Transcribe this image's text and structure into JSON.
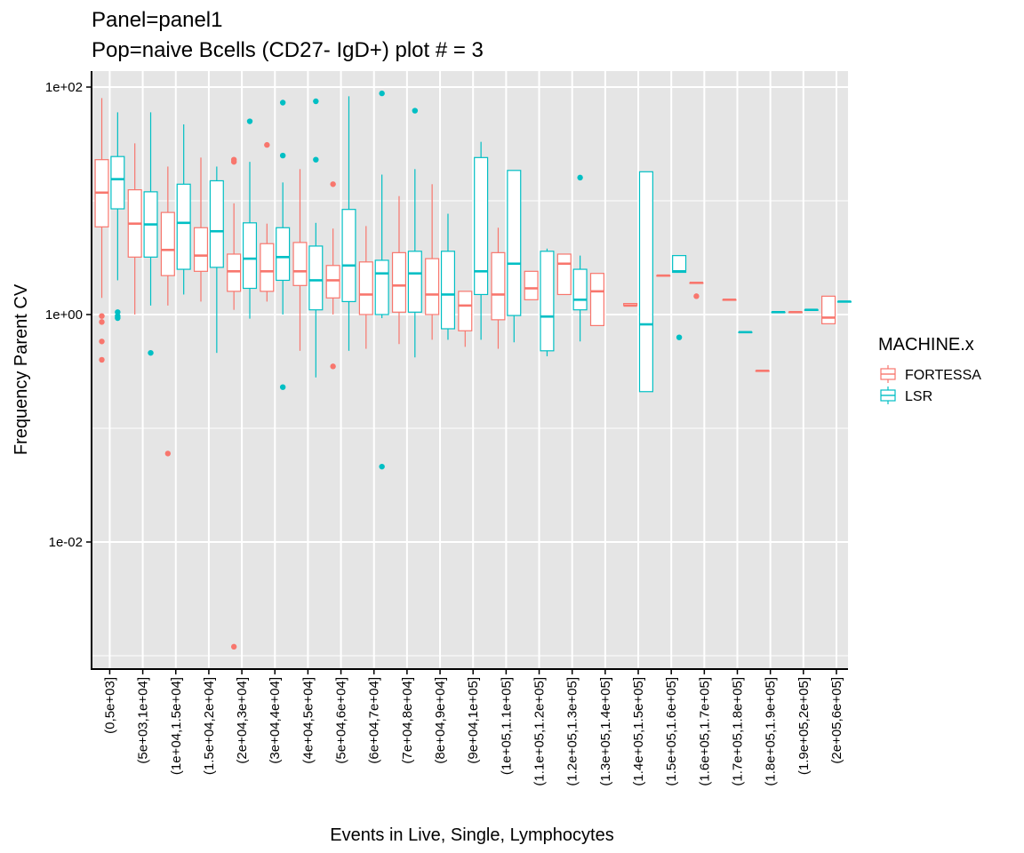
{
  "chart_data": {
    "type": "boxplot",
    "title": "Panel=panel1",
    "subtitle": "Pop=naive Bcells (CD27- IgD+) plot # = 3",
    "xlabel": "Events in Live, Single, Lymphocytes",
    "ylabel": "Frequency Parent CV",
    "y_scale": "log10",
    "ylim": [
      0.0008,
      150
    ],
    "y_ticks": [
      {
        "value": 0.01,
        "label": "1e-02"
      },
      {
        "value": 1,
        "label": "1e+00"
      },
      {
        "value": 100,
        "label": "1e+02"
      }
    ],
    "grid": true,
    "legend": {
      "title": "MACHINE.x",
      "position": "right",
      "entries": [
        "FORTESSA",
        "LSR"
      ]
    },
    "colors": {
      "FORTESSA": "#F8766D",
      "LSR": "#00BFC4",
      "panel_bg": "#E5E5E5",
      "grid": "#FFFFFF"
    },
    "categories": [
      "(0,5e+03]",
      "(5e+03,1e+04]",
      "(1e+04,1.5e+04]",
      "(1.5e+04,2e+04]",
      "(2e+04,3e+04]",
      "(3e+04,4e+04]",
      "(4e+04,5e+04]",
      "(5e+04,6e+04]",
      "(6e+04,7e+04]",
      "(7e+04,8e+04]",
      "(8e+04,9e+04]",
      "(9e+04,1e+05]",
      "(1e+05,1.1e+05]",
      "(1.1e+05,1.2e+05]",
      "(1.2e+05,1.3e+05]",
      "(1.3e+05,1.4e+05]",
      "(1.4e+05,1.5e+05]",
      "(1.5e+05,1.6e+05]",
      "(1.6e+05,1.7e+05]",
      "(1.7e+05,1.8e+05]",
      "(1.8e+05,1.9e+05]",
      "(1.9e+05,2e+05]",
      "(2e+05,6e+05]"
    ],
    "series": [
      {
        "name": "FORTESSA",
        "boxes": [
          {
            "category": 0,
            "min": 1.4,
            "q1": 5.9,
            "median": 11.8,
            "q3": 23,
            "max": 80,
            "outliers": [
              0.97,
              0.86,
              0.58,
              0.4
            ]
          },
          {
            "category": 1,
            "min": 1,
            "q1": 3.2,
            "median": 6.3,
            "q3": 12.5,
            "max": 32,
            "outliers": []
          },
          {
            "category": 2,
            "min": 1.2,
            "q1": 2.2,
            "median": 3.7,
            "q3": 7.9,
            "max": 20,
            "outliers": [
              0.06
            ]
          },
          {
            "category": 3,
            "min": 1.3,
            "q1": 2.4,
            "median": 3.3,
            "q3": 5.8,
            "max": 24,
            "outliers": []
          },
          {
            "category": 4,
            "min": 1.1,
            "q1": 1.6,
            "median": 2.4,
            "q3": 3.4,
            "max": 9.5,
            "outliers": [
              22,
              23,
              0.0012
            ]
          },
          {
            "category": 5,
            "min": 1.3,
            "q1": 1.6,
            "median": 2.4,
            "q3": 4.2,
            "max": 6.3,
            "outliers": [
              31
            ]
          },
          {
            "category": 6,
            "min": 0.48,
            "q1": 1.8,
            "median": 2.4,
            "q3": 4.3,
            "max": 19,
            "outliers": []
          },
          {
            "category": 7,
            "min": 1,
            "q1": 1.4,
            "median": 2.0,
            "q3": 2.7,
            "max": 5.7,
            "outliers": [
              14,
              0.35
            ]
          },
          {
            "category": 8,
            "min": 0.5,
            "q1": 1.0,
            "median": 1.5,
            "q3": 2.9,
            "max": 6,
            "outliers": []
          },
          {
            "category": 9,
            "min": 0.55,
            "q1": 1.05,
            "median": 1.8,
            "q3": 3.5,
            "max": 11,
            "outliers": []
          },
          {
            "category": 10,
            "min": 0.6,
            "q1": 1.0,
            "median": 1.5,
            "q3": 3.1,
            "max": 14,
            "outliers": []
          },
          {
            "category": 11,
            "min": 0.52,
            "q1": 0.72,
            "median": 1.2,
            "q3": 1.6,
            "max": 1.6,
            "outliers": []
          },
          {
            "category": 12,
            "min": 0.5,
            "q1": 0.9,
            "median": 1.5,
            "q3": 3.5,
            "max": 5.8,
            "outliers": []
          },
          {
            "category": 13,
            "min": 1.35,
            "q1": 1.35,
            "median": 1.7,
            "q3": 2.4,
            "max": 2.4,
            "outliers": []
          },
          {
            "category": 14,
            "min": 1.5,
            "q1": 1.5,
            "median": 2.8,
            "q3": 3.4,
            "max": 3.4,
            "outliers": []
          },
          {
            "category": 15,
            "min": 0.8,
            "q1": 0.8,
            "median": 1.6,
            "q3": 2.3,
            "max": 2.3,
            "outliers": []
          },
          {
            "category": 16,
            "min": 1.2,
            "q1": 1.2,
            "median": 1.2,
            "q3": 1.25,
            "max": 1.25,
            "outliers": []
          },
          {
            "category": 17,
            "min": 2.2,
            "q1": 2.2,
            "median": 2.2,
            "q3": 2.2,
            "max": 2.2,
            "outliers": []
          },
          {
            "category": 18,
            "min": 1.9,
            "q1": 1.9,
            "median": 1.9,
            "q3": 1.9,
            "max": 1.9,
            "outliers": [
              1.45
            ]
          },
          {
            "category": 19,
            "min": 1.35,
            "q1": 1.35,
            "median": 1.35,
            "q3": 1.35,
            "max": 1.35,
            "outliers": []
          },
          {
            "category": 20,
            "min": 0.32,
            "q1": 0.32,
            "median": 0.32,
            "q3": 0.32,
            "max": 0.32,
            "outliers": []
          },
          {
            "category": 21,
            "min": 1.05,
            "q1": 1.05,
            "median": 1.05,
            "q3": 1.05,
            "max": 1.05,
            "outliers": []
          },
          {
            "category": 22,
            "min": 0.83,
            "q1": 0.83,
            "median": 0.94,
            "q3": 1.45,
            "max": 1.45,
            "outliers": []
          }
        ]
      },
      {
        "name": "LSR",
        "boxes": [
          {
            "category": 0,
            "min": 2,
            "q1": 8.5,
            "median": 15.5,
            "q3": 24.5,
            "max": 60,
            "outliers": [
              1.05,
              0.97,
              0.93
            ]
          },
          {
            "category": 1,
            "min": 1.2,
            "q1": 3.2,
            "median": 6.2,
            "q3": 12.0,
            "max": 60,
            "outliers": [
              0.46
            ]
          },
          {
            "category": 2,
            "min": 1.5,
            "q1": 2.5,
            "median": 6.4,
            "q3": 14.0,
            "max": 47,
            "outliers": []
          },
          {
            "category": 3,
            "min": 0.46,
            "q1": 2.6,
            "median": 5.4,
            "q3": 15.0,
            "max": 20,
            "outliers": []
          },
          {
            "category": 4,
            "min": 0.92,
            "q1": 1.7,
            "median": 3.1,
            "q3": 6.4,
            "max": 22,
            "outliers": [
              50
            ]
          },
          {
            "category": 5,
            "min": 1,
            "q1": 2.0,
            "median": 3.2,
            "q3": 5.8,
            "max": 14.5,
            "outliers": [
              73,
              25,
              0.23
            ]
          },
          {
            "category": 6,
            "min": 0.28,
            "q1": 1.1,
            "median": 2.0,
            "q3": 4.0,
            "max": 6.4,
            "outliers": [
              75,
              23
            ]
          },
          {
            "category": 7,
            "min": 0.48,
            "q1": 1.3,
            "median": 2.7,
            "q3": 8.4,
            "max": 83,
            "outliers": []
          },
          {
            "category": 8,
            "min": 0.93,
            "q1": 1.0,
            "median": 2.3,
            "q3": 3.0,
            "max": 17,
            "outliers": [
              88,
              0.046
            ]
          },
          {
            "category": 9,
            "min": 0.42,
            "q1": 1.05,
            "median": 2.3,
            "q3": 3.6,
            "max": 19,
            "outliers": [
              62
            ]
          },
          {
            "category": 10,
            "min": 0.6,
            "q1": 0.75,
            "median": 1.5,
            "q3": 3.6,
            "max": 7.7,
            "outliers": []
          },
          {
            "category": 11,
            "min": 0.6,
            "q1": 1.5,
            "median": 2.4,
            "q3": 24,
            "max": 33,
            "outliers": []
          },
          {
            "category": 12,
            "min": 0.57,
            "q1": 0.98,
            "median": 2.8,
            "q3": 18.5,
            "max": 18.5,
            "outliers": []
          },
          {
            "category": 13,
            "min": 0.43,
            "q1": 0.48,
            "median": 0.96,
            "q3": 3.6,
            "max": 3.8,
            "outliers": []
          },
          {
            "category": 14,
            "min": 0.58,
            "q1": 1.1,
            "median": 1.35,
            "q3": 2.5,
            "max": 3.3,
            "outliers": [
              16
            ]
          },
          {
            "category": 16,
            "min": 0.21,
            "q1": 0.21,
            "median": 0.82,
            "q3": 18,
            "max": 18,
            "outliers": []
          },
          {
            "category": 17,
            "min": 2.35,
            "q1": 2.35,
            "median": 2.4,
            "q3": 3.3,
            "max": 3.3,
            "outliers": [
              0.63
            ]
          },
          {
            "category": 19,
            "min": 0.7,
            "q1": 0.7,
            "median": 0.7,
            "q3": 0.7,
            "max": 0.7,
            "outliers": []
          },
          {
            "category": 20,
            "min": 1.05,
            "q1": 1.05,
            "median": 1.05,
            "q3": 1.05,
            "max": 1.05,
            "outliers": []
          },
          {
            "category": 21,
            "min": 1.1,
            "q1": 1.1,
            "median": 1.1,
            "q3": 1.1,
            "max": 1.1,
            "outliers": []
          },
          {
            "category": 22,
            "min": 1.3,
            "q1": 1.3,
            "median": 1.3,
            "q3": 1.3,
            "max": 1.3,
            "outliers": []
          }
        ]
      }
    ]
  }
}
